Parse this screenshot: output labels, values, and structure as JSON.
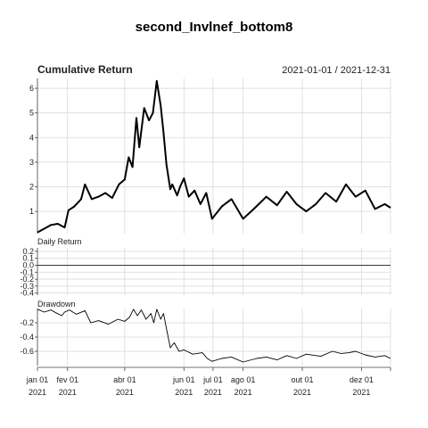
{
  "title": "second_Invlnef_bottom8",
  "chart_data": [
    {
      "panel": "cumulative",
      "type": "line",
      "title": "Cumulative Return",
      "date_range": "2021-01-01 / 2021-12-31",
      "yticks": [
        1,
        2,
        3,
        4,
        5,
        6
      ],
      "ylim": [
        0.1,
        6.4
      ],
      "grid": true,
      "x": [
        "2021-01-01",
        "2021-01-08",
        "2021-01-15",
        "2021-01-22",
        "2021-01-29",
        "2021-02-02",
        "2021-02-08",
        "2021-02-15",
        "2021-02-19",
        "2021-02-26",
        "2021-03-05",
        "2021-03-12",
        "2021-03-19",
        "2021-03-26",
        "2021-04-01",
        "2021-04-05",
        "2021-04-09",
        "2021-04-13",
        "2021-04-16",
        "2021-04-21",
        "2021-04-26",
        "2021-04-30",
        "2021-05-04",
        "2021-05-08",
        "2021-05-11",
        "2021-05-14",
        "2021-05-18",
        "2021-05-20",
        "2021-05-25",
        "2021-05-28",
        "2021-06-01",
        "2021-06-06",
        "2021-06-12",
        "2021-06-18",
        "2021-06-24",
        "2021-06-30",
        "2021-07-10",
        "2021-07-20",
        "2021-08-01",
        "2021-08-12",
        "2021-08-25",
        "2021-09-05",
        "2021-09-15",
        "2021-09-25",
        "2021-10-05",
        "2021-10-15",
        "2021-10-25",
        "2021-11-05",
        "2021-11-15",
        "2021-11-25",
        "2021-12-05",
        "2021-12-15",
        "2021-12-25",
        "2021-12-31"
      ],
      "values": [
        0.15,
        0.3,
        0.45,
        0.5,
        0.35,
        1.05,
        1.2,
        1.5,
        2.1,
        1.5,
        1.6,
        1.75,
        1.55,
        2.1,
        2.3,
        3.2,
        2.8,
        4.8,
        3.6,
        5.2,
        4.7,
        5.0,
        6.3,
        5.3,
        4.2,
        2.9,
        1.9,
        2.1,
        1.65,
        2.0,
        2.35,
        1.6,
        1.85,
        1.3,
        1.75,
        0.7,
        1.2,
        1.5,
        0.7,
        1.1,
        1.6,
        1.25,
        1.8,
        1.3,
        1.0,
        1.3,
        1.75,
        1.4,
        2.1,
        1.6,
        1.85,
        1.1,
        1.3,
        1.15
      ]
    },
    {
      "panel": "daily",
      "type": "bar",
      "title": "Daily Return",
      "yticks": [
        0.2,
        0.1,
        0.0,
        -0.1,
        -0.2,
        -0.3,
        -0.4
      ],
      "ytick_labels": [
        "0.2",
        "0.1",
        "0.0",
        "-0.1",
        "-0.2",
        "-0.3",
        "-0.4"
      ],
      "ylim": [
        -0.43,
        0.25
      ],
      "grid": true
    },
    {
      "panel": "drawdown",
      "type": "line",
      "title": "Drawdown",
      "yticks": [
        -0.2,
        -0.4,
        -0.6
      ],
      "ylim": [
        -0.8,
        0.0
      ],
      "grid": true,
      "x": [
        "2021-01-01",
        "2021-01-08",
        "2021-01-15",
        "2021-01-20",
        "2021-01-26",
        "2021-01-29",
        "2021-02-03",
        "2021-02-10",
        "2021-02-19",
        "2021-02-25",
        "2021-03-05",
        "2021-03-15",
        "2021-03-25",
        "2021-04-01",
        "2021-04-06",
        "2021-04-10",
        "2021-04-14",
        "2021-04-18",
        "2021-04-23",
        "2021-04-28",
        "2021-05-01",
        "2021-05-04",
        "2021-05-08",
        "2021-05-11",
        "2021-05-15",
        "2021-05-18",
        "2021-05-22",
        "2021-05-27",
        "2021-06-01",
        "2021-06-10",
        "2021-06-20",
        "2021-06-25",
        "2021-06-30",
        "2021-07-10",
        "2021-07-20",
        "2021-08-01",
        "2021-08-15",
        "2021-08-25",
        "2021-09-05",
        "2021-09-15",
        "2021-09-25",
        "2021-10-05",
        "2021-10-20",
        "2021-11-01",
        "2021-11-10",
        "2021-11-18",
        "2021-11-25",
        "2021-12-05",
        "2021-12-15",
        "2021-12-25",
        "2021-12-31"
      ],
      "values": [
        -0.01,
        -0.05,
        -0.02,
        -0.06,
        -0.1,
        -0.05,
        -0.02,
        -0.08,
        -0.03,
        -0.2,
        -0.17,
        -0.22,
        -0.15,
        -0.18,
        -0.12,
        -0.01,
        -0.1,
        -0.02,
        -0.15,
        -0.07,
        -0.2,
        -0.01,
        -0.15,
        -0.07,
        -0.35,
        -0.55,
        -0.48,
        -0.6,
        -0.58,
        -0.64,
        -0.62,
        -0.7,
        -0.74,
        -0.7,
        -0.68,
        -0.75,
        -0.7,
        -0.68,
        -0.72,
        -0.66,
        -0.7,
        -0.64,
        -0.67,
        -0.6,
        -0.63,
        -0.62,
        -0.6,
        -0.65,
        -0.68,
        -0.66,
        -0.7
      ]
    }
  ],
  "x_axis": {
    "ticks": [
      "2021-01-01",
      "2021-02-01",
      "2021-04-01",
      "2021-06-01",
      "2021-07-01",
      "2021-08-01",
      "2021-10-01",
      "2021-12-01",
      "2021-12-31"
    ],
    "labels": [
      {
        "date": "2021-01-01",
        "line1": "jan 01",
        "line2": "2021"
      },
      {
        "date": "2021-02-01",
        "line1": "fev 01",
        "line2": "2021"
      },
      {
        "date": "2021-04-01",
        "line1": "abr 01",
        "line2": "2021"
      },
      {
        "date": "2021-06-01",
        "line1": "jun 01",
        "line2": "2021"
      },
      {
        "date": "2021-07-01",
        "line1": "jul 01",
        "line2": "2021"
      },
      {
        "date": "2021-08-01",
        "line1": "ago 01",
        "line2": "2021"
      },
      {
        "date": "2021-10-01",
        "line1": "out 01",
        "line2": "2021"
      },
      {
        "date": "2021-12-01",
        "line1": "dez 01",
        "line2": "2021"
      }
    ]
  },
  "colors": {
    "series": "#000000",
    "grid": "#d9d9d9",
    "background": "#ffffff"
  }
}
